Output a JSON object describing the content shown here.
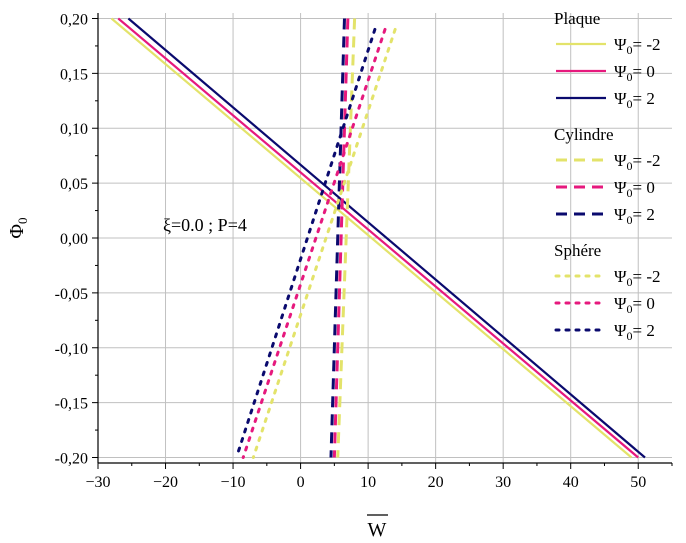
{
  "chart_data": {
    "type": "line",
    "xlabel": "W",
    "ylabel": "Φ0",
    "xlim": [
      -30,
      55
    ],
    "ylim": [
      -0.205,
      0.205
    ],
    "x_ticks": [
      -30,
      -20,
      -10,
      0,
      10,
      20,
      30,
      40,
      50
    ],
    "y_ticks": [
      0.2,
      0.15,
      0.1,
      0.05,
      0.0,
      -0.05,
      -0.1,
      -0.15,
      -0.2
    ],
    "y_tick_labels": [
      "0,20",
      "0,15",
      "0,10",
      "0,05",
      "0,00",
      "-0,05",
      "-0,10",
      "-0,15",
      "-0,20"
    ],
    "grid": true,
    "annotation": "ξ=0.0 ; P=4",
    "colors": {
      "psi_m2": "#e3e36a",
      "psi_0": "#e6197d",
      "psi_2": "#0a0a6e"
    },
    "groups": [
      {
        "title": "Plaque",
        "style": "solid",
        "series": [
          {
            "name": "Ψ0= -2",
            "color": "#e3e36a",
            "x": [
              -28.0,
              49.0
            ],
            "y": [
              0.2,
              -0.2
            ]
          },
          {
            "name": "Ψ0= 0",
            "color": "#e6197d",
            "x": [
              -27.0,
              50.0
            ],
            "y": [
              0.2,
              -0.2
            ]
          },
          {
            "name": "Ψ0= 2",
            "color": "#0a0a6e",
            "x": [
              -25.5,
              51.0
            ],
            "y": [
              0.2,
              -0.2
            ]
          }
        ]
      },
      {
        "title": "Cylindre",
        "style": "dashed",
        "series": [
          {
            "name": "Ψ0= -2",
            "color": "#e3e36a",
            "x": [
              8.0,
              5.5
            ],
            "y": [
              0.2,
              -0.2
            ]
          },
          {
            "name": "Ψ0= 0",
            "color": "#e6197d",
            "x": [
              7.0,
              5.0
            ],
            "y": [
              0.2,
              -0.2
            ]
          },
          {
            "name": "Ψ0= 2",
            "color": "#0a0a6e",
            "x": [
              6.5,
              4.5
            ],
            "y": [
              0.2,
              -0.2
            ]
          }
        ]
      },
      {
        "title": "Sphére",
        "style": "dotted",
        "series": [
          {
            "name": "Ψ0= -2",
            "color": "#e3e36a",
            "x": [
              14.0,
              -7.0
            ],
            "y": [
              0.19,
              -0.2
            ]
          },
          {
            "name": "Ψ0= 0",
            "color": "#e6197d",
            "x": [
              12.5,
              -8.5
            ],
            "y": [
              0.19,
              -0.2
            ]
          },
          {
            "name": "Ψ0= 2",
            "color": "#0a0a6e",
            "x": [
              11.0,
              -9.5
            ],
            "y": [
              0.19,
              -0.2
            ]
          }
        ]
      }
    ]
  }
}
